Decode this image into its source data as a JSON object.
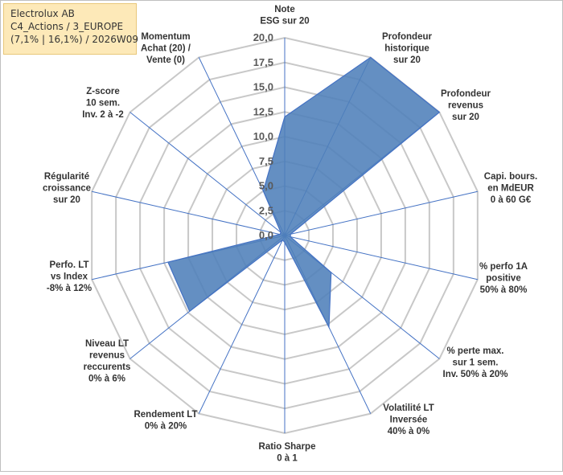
{
  "header": {
    "line1": "Electrolux AB",
    "line2": "C4_Actions / 3_EUROPE",
    "line3": "(7,1% | 16,1%) / 2026W09"
  },
  "chart_data": {
    "type": "radar",
    "title": "Electrolux AB",
    "rmin": 0,
    "rmax": 20,
    "ticks": [
      "0,0",
      "2,5",
      "5,0",
      "7,5",
      "10,0",
      "12,5",
      "15,0",
      "17,5",
      "20,0"
    ],
    "axes": [
      {
        "label": [
          "Note",
          "ESG sur 20"
        ],
        "value": 12
      },
      {
        "label": [
          "Profondeur",
          "historique",
          "sur 20"
        ],
        "value": 20
      },
      {
        "label": [
          "Profondeur",
          "revenus",
          "sur 20"
        ],
        "value": 20
      },
      {
        "label": [
          "Capi. bours.",
          "en MdEUR",
          "0 à 60 G€"
        ],
        "value": 0.6
      },
      {
        "label": [
          "% perfo 1A",
          "positive",
          "50% à 80%"
        ],
        "value": 0.6
      },
      {
        "label": [
          "% perte max.",
          "sur 1 sem.",
          "Inv. 50% à 20%"
        ],
        "value": 6
      },
      {
        "label": [
          "Volatilité LT",
          "Inversée",
          "40% à 0%"
        ],
        "value": 10.3
      },
      {
        "label": [
          "Ratio Sharpe",
          "0 à 1"
        ],
        "value": 0.7
      },
      {
        "label": [
          "Rendement LT",
          "0% à 20%"
        ],
        "value": 0.5
      },
      {
        "label": [
          "Niveau LT",
          "revenus",
          "reccurents",
          "0% à 6%"
        ],
        "value": 12.3
      },
      {
        "label": [
          "Perfo. LT",
          "vs Index",
          "-8% à 12%"
        ],
        "value": 12.1
      },
      {
        "label": [
          "Régularité",
          "croissance",
          "sur 20"
        ],
        "value": 0.5
      },
      {
        "label": [
          "Z-score",
          "10 sem.",
          "Inv. 2 à -2"
        ],
        "value": 0.5
      },
      {
        "label": [
          "Momentum",
          "Achat (20) /",
          "Vente (0)"
        ],
        "value": 5
      }
    ],
    "colors": {
      "fill": "#4f7fba",
      "stroke": "#4472c4",
      "grid": "#c8c8c8",
      "spoke": "#4472c4"
    }
  }
}
